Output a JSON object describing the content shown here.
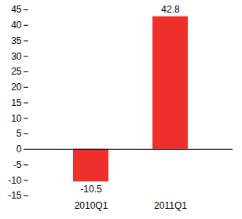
{
  "chart_data": {
    "type": "bar",
    "categories": [
      "2010Q1",
      "2011Q1"
    ],
    "values": [
      -10.5,
      42.8
    ],
    "color": "#ee2f2b",
    "ylim": [
      -15,
      45
    ],
    "yticks": [
      -15,
      -10,
      -5,
      0,
      5,
      10,
      15,
      20,
      25,
      30,
      35,
      40,
      45
    ],
    "grid": false,
    "data_labels": true
  }
}
